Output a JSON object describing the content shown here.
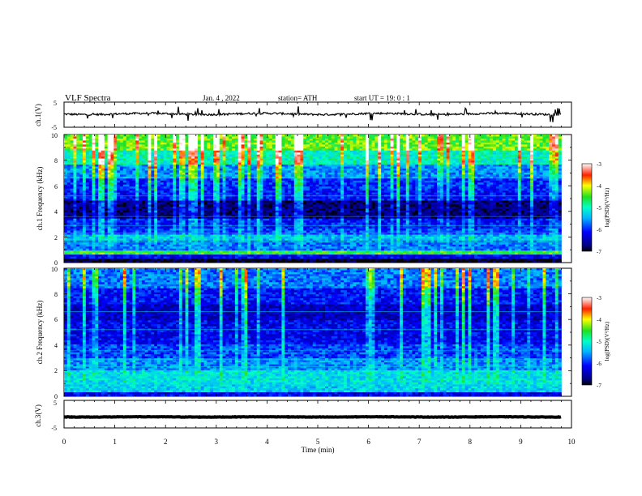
{
  "header": {
    "title": "VLF  Spectra",
    "date": "Jan. 4  , 2022",
    "station": "station= ATH",
    "start": "start  UT  =    19: 0   : 1"
  },
  "chart_data": [
    {
      "type": "line",
      "name": "ch1-waveform",
      "ylabel": "ch.1(V)",
      "ylim": [
        -5,
        5
      ],
      "yticks": [
        "5",
        "-5"
      ],
      "xlim": [
        0,
        10
      ],
      "approx_level": 0.3,
      "trace_end_x": 9.8,
      "color": "#000000"
    },
    {
      "type": "heatmap",
      "name": "ch1-spectrogram",
      "ylabel": "ch.1 Frequency (kHz)",
      "ylim": [
        0,
        10
      ],
      "yticks": [
        "0",
        "2",
        "4",
        "6",
        "8",
        "10"
      ],
      "xlim": [
        0,
        10
      ],
      "trace_end_x": 9.8,
      "colorbar": {
        "label": "log(PSD)(V²/Hz)",
        "range": [
          -7,
          -3
        ],
        "ticks": [
          "-3",
          "-4",
          "-5",
          "-6",
          "-7"
        ]
      },
      "bands": [
        {
          "from": 0.0,
          "to": 0.25,
          "level": -7
        },
        {
          "from": 0.25,
          "to": 0.7,
          "level": -6.2
        },
        {
          "from": 0.7,
          "to": 1.0,
          "level": -4.6
        },
        {
          "from": 1.0,
          "to": 1.7,
          "level": -5.7
        },
        {
          "from": 1.7,
          "to": 2.2,
          "level": -5.4
        },
        {
          "from": 2.2,
          "to": 2.7,
          "level": -5.9
        },
        {
          "from": 2.7,
          "to": 3.5,
          "level": -6.1
        },
        {
          "from": 3.5,
          "to": 4.8,
          "level": -6.7
        },
        {
          "from": 4.8,
          "to": 5.6,
          "level": -6.1
        },
        {
          "from": 5.6,
          "to": 6.5,
          "level": -6.0
        },
        {
          "from": 6.5,
          "to": 7.6,
          "level": -5.6
        },
        {
          "from": 7.6,
          "to": 8.8,
          "level": -5.0
        },
        {
          "from": 8.8,
          "to": 10.0,
          "level": -4.4
        }
      ]
    },
    {
      "type": "heatmap",
      "name": "ch2-spectrogram",
      "ylabel": "ch.2 Frequency (kHz)",
      "ylim": [
        0,
        10
      ],
      "yticks": [
        "0",
        "2",
        "4",
        "6",
        "8",
        "10"
      ],
      "xlim": [
        0,
        10
      ],
      "trace_end_x": 9.8,
      "colorbar": {
        "label": "log(PSD)(V²/Hz)",
        "range": [
          -7,
          -3
        ],
        "ticks": [
          "-3",
          "-4",
          "-5",
          "-6",
          "-7"
        ]
      },
      "bands": [
        {
          "from": 0.0,
          "to": 0.3,
          "level": -6.2
        },
        {
          "from": 0.3,
          "to": 1.0,
          "level": -5.3
        },
        {
          "from": 1.0,
          "to": 2.0,
          "level": -5.2
        },
        {
          "from": 2.0,
          "to": 3.0,
          "level": -5.6
        },
        {
          "from": 3.0,
          "to": 4.0,
          "level": -5.9
        },
        {
          "from": 4.0,
          "to": 5.0,
          "level": -6.2
        },
        {
          "from": 5.0,
          "to": 6.0,
          "level": -6.2
        },
        {
          "from": 6.0,
          "to": 7.2,
          "level": -6.4
        },
        {
          "from": 7.2,
          "to": 8.5,
          "level": -6.1
        },
        {
          "from": 8.5,
          "to": 10.0,
          "level": -5.7
        }
      ]
    },
    {
      "type": "line",
      "name": "ch3-waveform",
      "ylabel": "ch.3(V)",
      "ylim": [
        -5,
        5
      ],
      "yticks": [
        "5",
        "-5"
      ],
      "xlim": [
        0,
        10
      ],
      "xlabel": "Time  (min)",
      "xticks": [
        "0",
        "1",
        "2",
        "3",
        "4",
        "5",
        "6",
        "7",
        "8",
        "9",
        "10"
      ],
      "approx_level": -1.0,
      "trace_end_x": 9.8,
      "color": "#000000"
    }
  ]
}
